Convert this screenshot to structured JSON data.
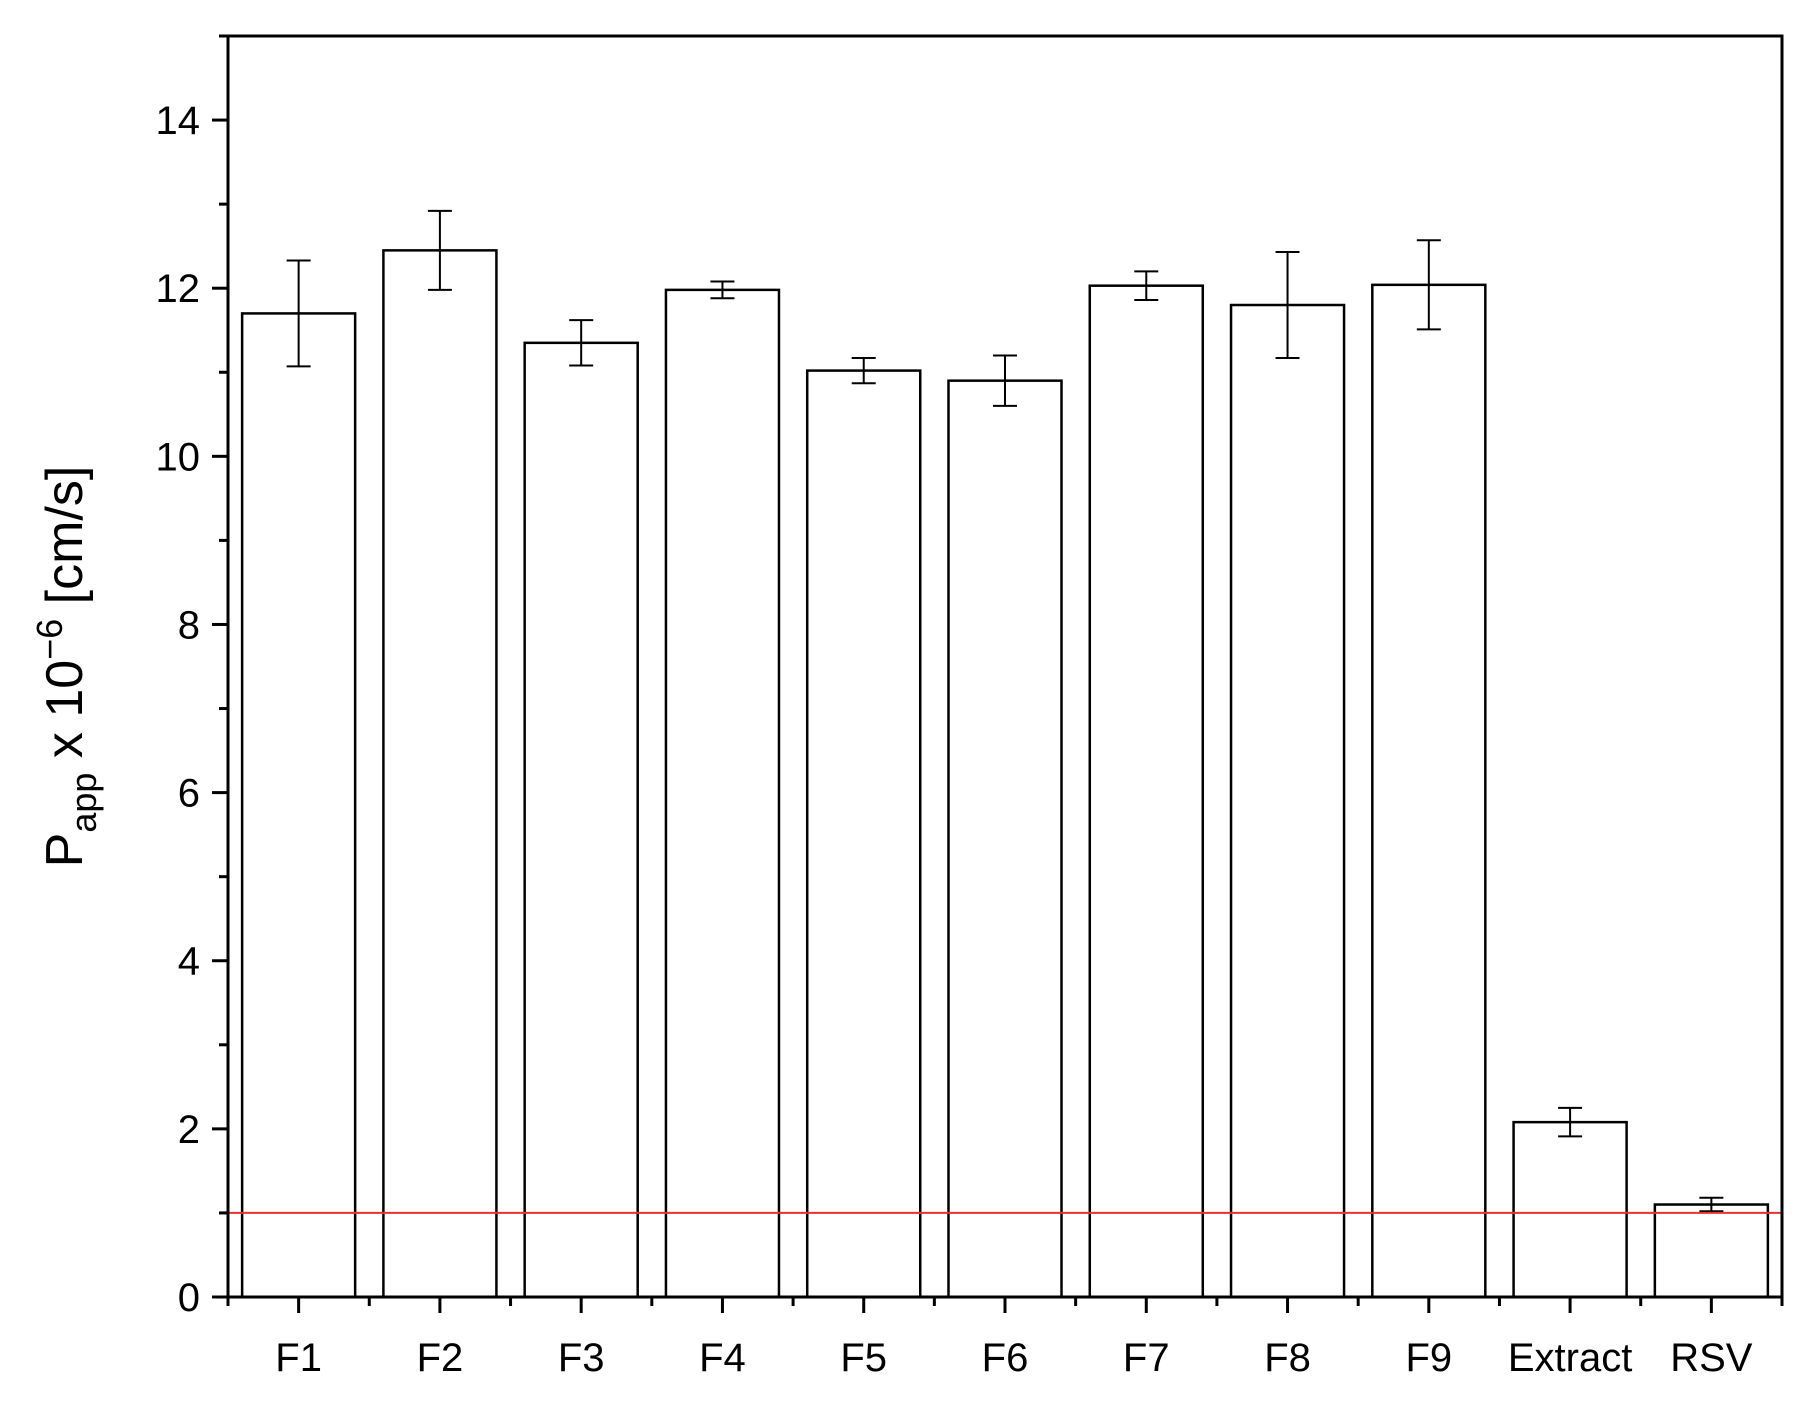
{
  "chart_data": {
    "type": "bar",
    "title": "",
    "xlabel": "",
    "ylabel": {
      "main": "P",
      "subscript": "app",
      "middle": " x 10",
      "superscript": "−6",
      "unit": " [cm/s]"
    },
    "categories": [
      "F1",
      "F2",
      "F3",
      "F4",
      "F5",
      "F6",
      "F7",
      "F8",
      "F9",
      "Extract",
      "RSV"
    ],
    "values": [
      11.7,
      12.45,
      11.35,
      11.98,
      11.02,
      10.9,
      12.03,
      11.8,
      12.04,
      2.08,
      1.1
    ],
    "errors": [
      0.63,
      0.47,
      0.27,
      0.1,
      0.15,
      0.3,
      0.17,
      0.63,
      0.53,
      0.17,
      0.08
    ],
    "ylim": [
      0,
      15
    ],
    "yticks": [
      0,
      2,
      4,
      6,
      8,
      10,
      12,
      14
    ],
    "reference_line": {
      "y": 1,
      "color": "#e8322d"
    },
    "bar_fill": "#ffffff",
    "bar_stroke": "#000000",
    "grid": false,
    "legend": "none"
  }
}
